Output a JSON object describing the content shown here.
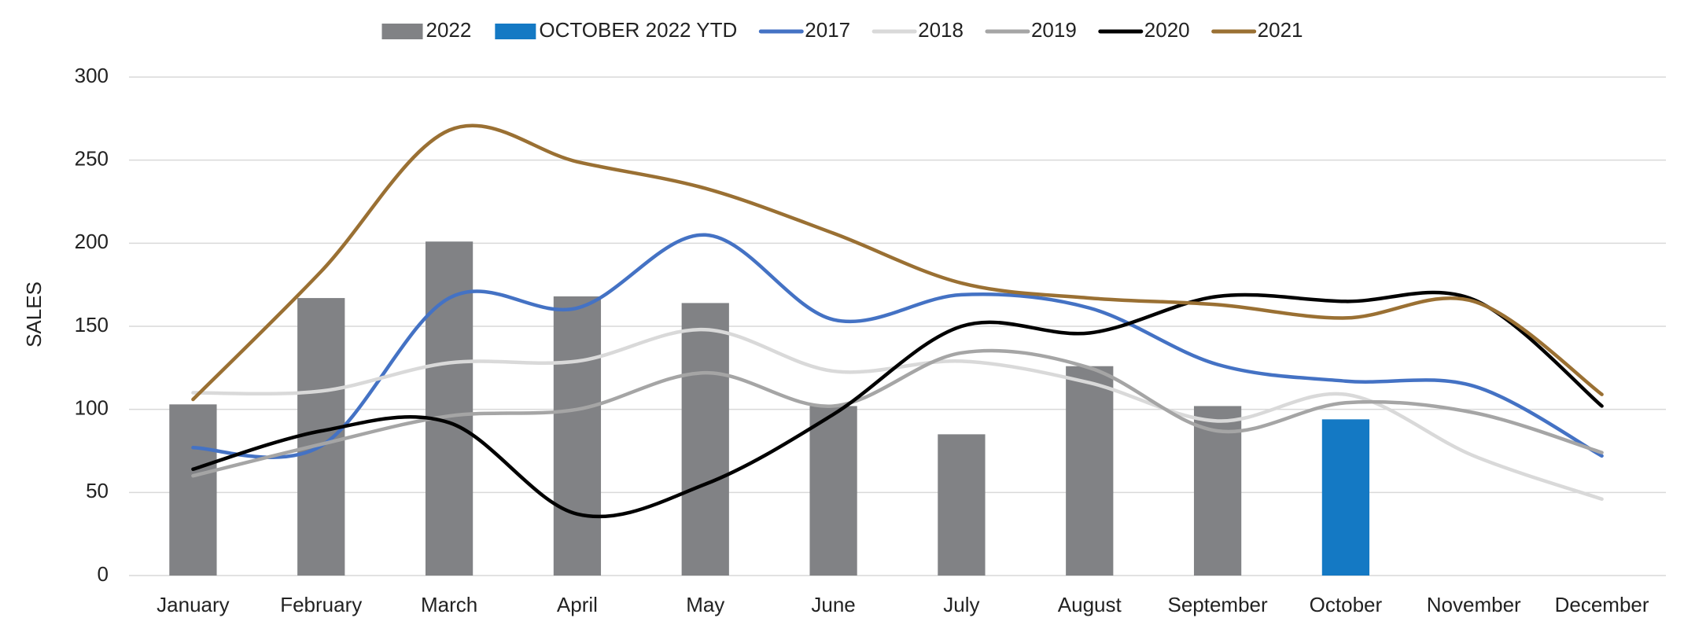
{
  "chart_data": {
    "type": "combo",
    "y_label": "SALES",
    "categories": [
      "January",
      "February",
      "March",
      "April",
      "May",
      "June",
      "July",
      "August",
      "September",
      "October",
      "November",
      "December"
    ],
    "series": [
      {
        "name": "2022",
        "type": "bar",
        "color": "#818285",
        "values": [
          103,
          167,
          201,
          168,
          164,
          102,
          85,
          126,
          102,
          null,
          null,
          null
        ]
      },
      {
        "name": "OCTOBER 2022 YTD",
        "type": "bar",
        "color": "#1479c4",
        "values": [
          null,
          null,
          null,
          null,
          null,
          null,
          null,
          null,
          null,
          94,
          null,
          null
        ]
      },
      {
        "name": "2017",
        "type": "line",
        "color": "#4472c4",
        "values": [
          77,
          78,
          167,
          161,
          205,
          154,
          169,
          161,
          127,
          117,
          114,
          72
        ]
      },
      {
        "name": "2018",
        "type": "line",
        "color": "#d9d9d9",
        "values": [
          110,
          111,
          128,
          129,
          148,
          123,
          129,
          116,
          93,
          109,
          72,
          46
        ]
      },
      {
        "name": "2019",
        "type": "line",
        "color": "#a5a5a5",
        "values": [
          60,
          79,
          96,
          100,
          122,
          102,
          134,
          125,
          87,
          104,
          98,
          74
        ]
      },
      {
        "name": "2020",
        "type": "line",
        "color": "#000000",
        "values": [
          64,
          87,
          92,
          37,
          55,
          97,
          150,
          146,
          168,
          165,
          166,
          102
        ]
      },
      {
        "name": "2021",
        "type": "line",
        "color": "#9a7033",
        "values": [
          106,
          183,
          268,
          249,
          233,
          206,
          176,
          167,
          163,
          155,
          165,
          109
        ]
      }
    ],
    "smooth": true,
    "ylim": [
      0,
      300
    ],
    "yticks": [
      0,
      50,
      100,
      150,
      200,
      250,
      300
    ],
    "grid": true,
    "legend": "top"
  }
}
